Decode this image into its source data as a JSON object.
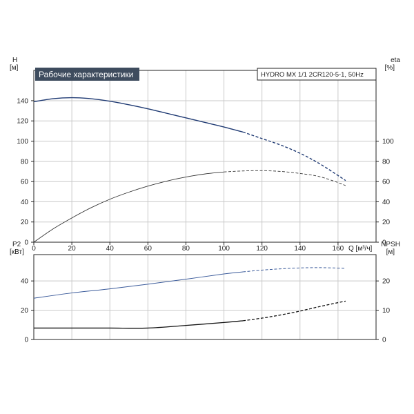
{
  "chart_data": [
    {
      "type": "line",
      "title": "Рабочие характеристики",
      "model": "HYDRO MX 1/1 2CR120-5-1, 50Hz",
      "xlabel": "Q [м³/ч]",
      "x_ticks": [
        0,
        20,
        40,
        60,
        80,
        100,
        120,
        140,
        160
      ],
      "xlim": [
        0,
        180
      ],
      "left_axis": {
        "label": "H",
        "unit": "[м]",
        "ylim": [
          0,
          170
        ],
        "ticks": [
          0,
          20,
          40,
          60,
          80,
          100,
          120,
          140
        ]
      },
      "right_axis": {
        "label": "eta",
        "unit": "[%]",
        "ylim": [
          0,
          170
        ],
        "ticks": [
          0,
          20,
          40,
          60,
          80,
          100
        ]
      },
      "grid": true,
      "series": [
        {
          "axis": "left",
          "color": "#1f3a73",
          "width": 1.4,
          "solid_until_x": 110,
          "x": [
            0,
            10,
            20,
            30,
            40,
            50,
            60,
            70,
            80,
            90,
            100,
            110,
            120,
            130,
            140,
            150,
            160,
            164
          ],
          "y": [
            139,
            142,
            143,
            142,
            139.5,
            136,
            132,
            127.5,
            123,
            118.5,
            114,
            109,
            102.5,
            96,
            88,
            78,
            66,
            61
          ]
        },
        {
          "axis": "right",
          "color": "#333333",
          "width": 0.9,
          "solid_until_x": 108,
          "x": [
            0,
            10,
            20,
            30,
            40,
            50,
            60,
            70,
            80,
            90,
            100,
            110,
            120,
            130,
            140,
            150,
            160,
            164
          ],
          "y": [
            0,
            13,
            24,
            34,
            42.5,
            49.5,
            55.5,
            60.5,
            64.5,
            67.5,
            69.5,
            70.5,
            70.8,
            70,
            68,
            65,
            59,
            56
          ]
        }
      ]
    },
    {
      "type": "line",
      "xlim": [
        0,
        180
      ],
      "left_axis": {
        "label": "P2",
        "unit": "[кВт]",
        "ylim": [
          0,
          58
        ],
        "ticks": [
          0,
          20,
          40
        ]
      },
      "right_axis": {
        "label": "NPSH",
        "unit": "[м]",
        "ylim": [
          0,
          29
        ],
        "ticks": [
          0,
          10,
          20
        ]
      },
      "grid": true,
      "series": [
        {
          "axis": "left",
          "color": "#3a5a9a",
          "width": 1.0,
          "solid_until_x": 110,
          "x": [
            0,
            20,
            40,
            60,
            80,
            100,
            110,
            120,
            130,
            140,
            150,
            160,
            164
          ],
          "y": [
            28.2,
            31.8,
            34.6,
            37.8,
            41.2,
            44.8,
            46.2,
            47.4,
            48.3,
            48.9,
            49.1,
            48.8,
            48.6
          ]
        },
        {
          "axis": "right",
          "color": "#111111",
          "width": 1.3,
          "solid_until_x": 110,
          "x": [
            0,
            20,
            40,
            60,
            80,
            100,
            110,
            120,
            130,
            140,
            150,
            160,
            164
          ],
          "y": [
            3.9,
            3.9,
            3.9,
            3.9,
            4.8,
            5.8,
            6.4,
            7.3,
            8.4,
            9.7,
            11.2,
            12.6,
            13.1
          ]
        }
      ]
    }
  ]
}
